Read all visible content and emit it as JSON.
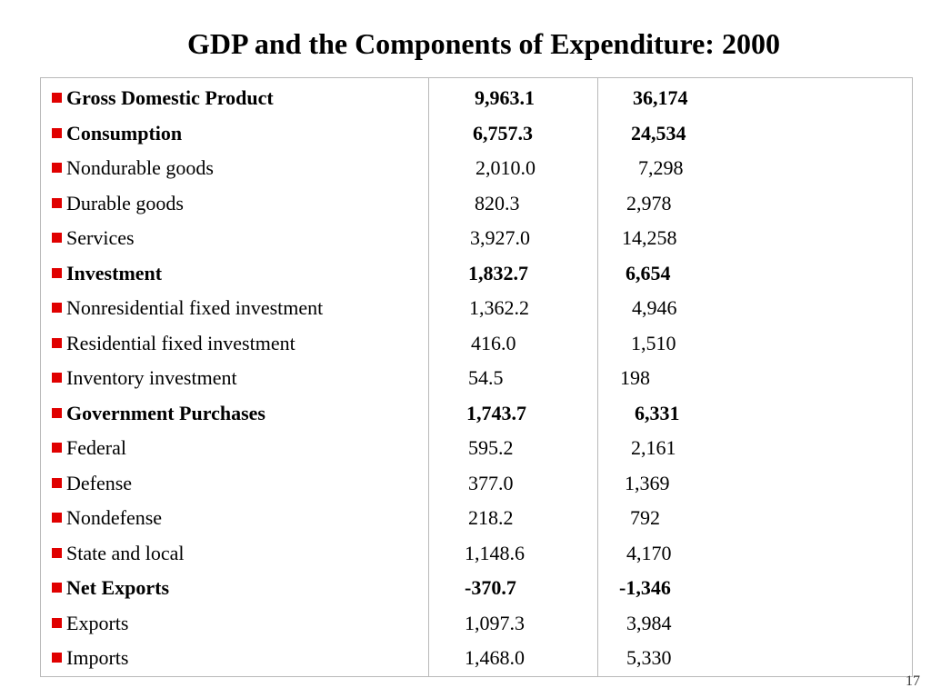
{
  "title": "GDP and the Components of Expenditure: 2000",
  "page_number": "17",
  "colors": {
    "bullet": "#e00000",
    "grid": "#b9b9b9"
  },
  "rows": [
    {
      "label": "Gross Domestic Product",
      "total": "9,963.1",
      "per_person": "36,174",
      "bold": true
    },
    {
      "label": "Consumption",
      "total": "6,757.3",
      "per_person": "24,534",
      "bold": true
    },
    {
      "label": "Nondurable goods",
      "total": "2,010.0",
      "per_person": "7,298",
      "bold": false
    },
    {
      "label": "Durable goods",
      "total": "820.3",
      "per_person": "2,978",
      "bold": false
    },
    {
      "label": "Services",
      "total": "3,927.0",
      "per_person": "14,258",
      "bold": false
    },
    {
      "label": "Investment",
      "total": "1,832.7",
      "per_person": "6,654",
      "bold": true
    },
    {
      "label": "Nonresidential fixed investment",
      "total": "1,362.2",
      "per_person": "4,946",
      "bold": false
    },
    {
      "label": "Residential fixed investment",
      "total": "416.0",
      "per_person": "1,510",
      "bold": false
    },
    {
      "label": "Inventory investment",
      "total": "54.5",
      "per_person": "198",
      "bold": false
    },
    {
      "label": "Government Purchases",
      "total": "1,743.7",
      "per_person": "6,331",
      "bold": true
    },
    {
      "label": "Federal",
      "total": "595.2",
      "per_person": "2,161",
      "bold": false
    },
    {
      "label": "Defense",
      "total": "377.0",
      "per_person": "1,369",
      "bold": false
    },
    {
      "label": "Nondefense",
      "total": "218.2",
      "per_person": "792",
      "bold": false
    },
    {
      "label": "State and local",
      "total": "1,148.6",
      "per_person": "4,170",
      "bold": false
    },
    {
      "label": "Net Exports",
      "total": "-370.7",
      "per_person": "-1,346",
      "bold": true
    },
    {
      "label": "Exports",
      "total": "1,097.3",
      "per_person": "3,984",
      "bold": false
    },
    {
      "label": "Imports",
      "total": "1,468.0",
      "per_person": "5,330",
      "bold": false
    }
  ]
}
